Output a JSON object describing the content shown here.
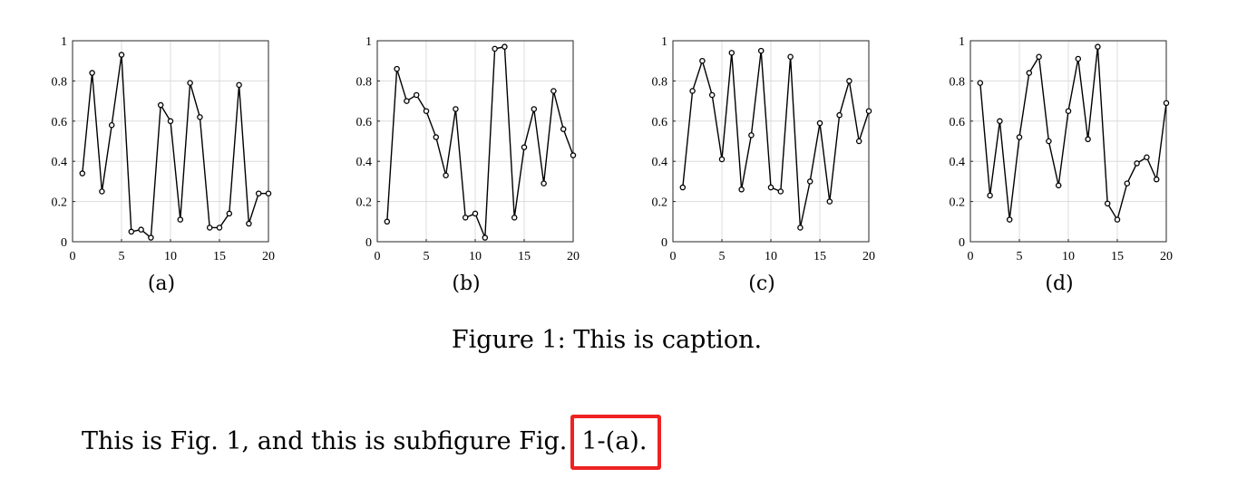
{
  "chart_data": [
    {
      "type": "line",
      "panel_label": "(a)",
      "x": [
        1,
        2,
        3,
        4,
        5,
        6,
        7,
        8,
        9,
        10,
        11,
        12,
        13,
        14,
        15,
        16,
        17,
        18,
        19,
        20
      ],
      "series": [
        {
          "values": [
            0.34,
            0.84,
            0.25,
            0.58,
            0.93,
            0.05,
            0.06,
            0.02,
            0.68,
            0.6,
            0.11,
            0.79,
            0.62,
            0.07,
            0.07,
            0.14,
            0.78,
            0.09,
            0.24,
            0.24
          ]
        }
      ],
      "xlim": [
        0,
        20
      ],
      "ylim": [
        0,
        1
      ],
      "xticks": [
        0,
        5,
        10,
        15,
        20
      ],
      "yticks": [
        0,
        0.2,
        0.4,
        0.6,
        0.8,
        1
      ],
      "xtick_labels": [
        "0",
        "5",
        "10",
        "15",
        "20"
      ],
      "ytick_labels": [
        "0",
        "0.2",
        "0.4",
        "0.6",
        "0.8",
        "1"
      ],
      "grid": true
    },
    {
      "type": "line",
      "panel_label": "(b)",
      "x": [
        1,
        2,
        3,
        4,
        5,
        6,
        7,
        8,
        9,
        10,
        11,
        12,
        13,
        14,
        15,
        16,
        17,
        18,
        19,
        20
      ],
      "series": [
        {
          "values": [
            0.1,
            0.86,
            0.7,
            0.73,
            0.65,
            0.52,
            0.33,
            0.66,
            0.12,
            0.14,
            0.02,
            0.96,
            0.97,
            0.12,
            0.47,
            0.66,
            0.29,
            0.75,
            0.56,
            0.43
          ]
        }
      ],
      "xlim": [
        0,
        20
      ],
      "ylim": [
        0,
        1
      ],
      "xticks": [
        0,
        5,
        10,
        15,
        20
      ],
      "yticks": [
        0,
        0.2,
        0.4,
        0.6,
        0.8,
        1
      ],
      "xtick_labels": [
        "0",
        "5",
        "10",
        "15",
        "20"
      ],
      "ytick_labels": [
        "0",
        "0.2",
        "0.4",
        "0.6",
        "0.8",
        "1"
      ],
      "grid": true
    },
    {
      "type": "line",
      "panel_label": "(c)",
      "x": [
        1,
        2,
        3,
        4,
        5,
        6,
        7,
        8,
        9,
        10,
        11,
        12,
        13,
        14,
        15,
        16,
        17,
        18,
        19,
        20
      ],
      "series": [
        {
          "values": [
            0.27,
            0.75,
            0.9,
            0.73,
            0.41,
            0.94,
            0.26,
            0.53,
            0.95,
            0.27,
            0.25,
            0.92,
            0.07,
            0.3,
            0.59,
            0.2,
            0.63,
            0.8,
            0.5,
            0.65
          ]
        }
      ],
      "xlim": [
        0,
        20
      ],
      "ylim": [
        0,
        1
      ],
      "xticks": [
        0,
        5,
        10,
        15,
        20
      ],
      "yticks": [
        0,
        0.2,
        0.4,
        0.6,
        0.8,
        1
      ],
      "xtick_labels": [
        "0",
        "5",
        "10",
        "15",
        "20"
      ],
      "ytick_labels": [
        "0",
        "0.2",
        "0.4",
        "0.6",
        "0.8",
        "1"
      ],
      "grid": true
    },
    {
      "type": "line",
      "panel_label": "(d)",
      "x": [
        1,
        2,
        3,
        4,
        5,
        6,
        7,
        8,
        9,
        10,
        11,
        12,
        13,
        14,
        15,
        16,
        17,
        18,
        19,
        20
      ],
      "series": [
        {
          "values": [
            0.79,
            0.23,
            0.6,
            0.11,
            0.52,
            0.84,
            0.92,
            0.5,
            0.28,
            0.65,
            0.91,
            0.51,
            0.97,
            0.19,
            0.11,
            0.29,
            0.39,
            0.42,
            0.31,
            0.69
          ]
        }
      ],
      "xlim": [
        0,
        20
      ],
      "ylim": [
        0,
        1
      ],
      "xticks": [
        0,
        5,
        10,
        15,
        20
      ],
      "yticks": [
        0,
        0.2,
        0.4,
        0.6,
        0.8,
        1
      ],
      "xtick_labels": [
        "0",
        "5",
        "10",
        "15",
        "20"
      ],
      "ytick_labels": [
        "0",
        "0.2",
        "0.4",
        "0.6",
        "0.8",
        "1"
      ],
      "grid": true
    }
  ],
  "figure": {
    "caption": "Figure 1: This is caption."
  },
  "paragraph": {
    "text_before": "This is Fig. 1, and this is subfigure Fig.",
    "ref": "1-(a).",
    "highlight_color": "#ee2222"
  }
}
